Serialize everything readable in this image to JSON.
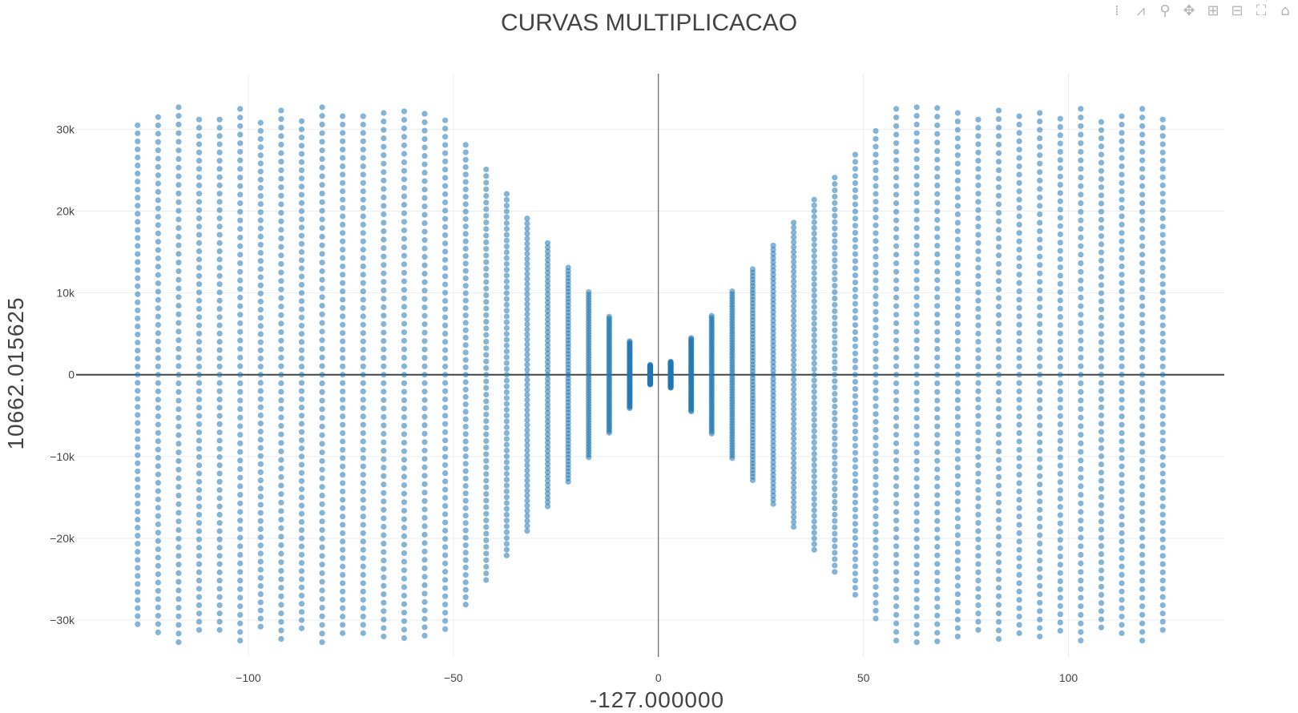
{
  "modebar": {
    "icons": [
      "show-closest-data-icon",
      "compare-data-icon",
      "zoom-icon",
      "pan-icon",
      "zoom-in-icon",
      "zoom-out-icon",
      "autoscale-icon",
      "reset-axes-icon"
    ],
    "color": "#b6b6b6"
  },
  "chart_data": {
    "type": "scatter",
    "title": "CURVAS MULTIPLICACAO",
    "xlabel": "-127.000000",
    "ylabel": "10662.015625",
    "xlim": [
      -142,
      138
    ],
    "ylim": [
      -34500,
      36800
    ],
    "xticks": [
      -100,
      -50,
      0,
      50,
      100
    ],
    "xtick_labels": [
      "−100",
      "−50",
      "0",
      "50",
      "100"
    ],
    "yticks": [
      -30000,
      -20000,
      -10000,
      0,
      10000,
      20000,
      30000
    ],
    "ytick_labels": [
      "−30k",
      "−20k",
      "−10k",
      "0",
      "10k",
      "20k",
      "30k"
    ],
    "grid": true,
    "zero_lines": true,
    "marker_color": "#1f77b4",
    "marker_opacity": 0.55,
    "series": [
      {
        "columns": [
          {
            "x": -127,
            "half_range": 30500,
            "count": 63
          },
          {
            "x": -122,
            "half_range": 31500,
            "count": 63
          },
          {
            "x": -117,
            "half_range": 32700,
            "count": 63
          },
          {
            "x": -112,
            "half_range": 31200,
            "count": 63
          },
          {
            "x": -107,
            "half_range": 31200,
            "count": 63
          },
          {
            "x": -102,
            "half_range": 32500,
            "count": 63
          },
          {
            "x": -97,
            "half_range": 30800,
            "count": 63
          },
          {
            "x": -92,
            "half_range": 32300,
            "count": 63
          },
          {
            "x": -87,
            "half_range": 31000,
            "count": 63
          },
          {
            "x": -82,
            "half_range": 32700,
            "count": 63
          },
          {
            "x": -77,
            "half_range": 31600,
            "count": 63
          },
          {
            "x": -72,
            "half_range": 31600,
            "count": 63
          },
          {
            "x": -67,
            "half_range": 32000,
            "count": 63
          },
          {
            "x": -62,
            "half_range": 32200,
            "count": 63
          },
          {
            "x": -57,
            "half_range": 31900,
            "count": 63
          },
          {
            "x": -52,
            "half_range": 31100,
            "count": 63
          },
          {
            "x": -47,
            "half_range": 28100,
            "count": 63
          },
          {
            "x": -42,
            "half_range": 25100,
            "count": 63
          },
          {
            "x": -37,
            "half_range": 22100,
            "count": 63
          },
          {
            "x": -32,
            "half_range": 19100,
            "count": 63
          },
          {
            "x": -27,
            "half_range": 16100,
            "count": 63
          },
          {
            "x": -22,
            "half_range": 13100,
            "count": 63
          },
          {
            "x": -17,
            "half_range": 10100,
            "count": 63
          },
          {
            "x": -12,
            "half_range": 7100,
            "count": 63
          },
          {
            "x": -7,
            "half_range": 4100,
            "count": 63
          },
          {
            "x": -2,
            "half_range": 1200,
            "count": 63
          },
          {
            "x": 3,
            "half_range": 1600,
            "count": 63
          },
          {
            "x": 8,
            "half_range": 4500,
            "count": 63
          },
          {
            "x": 13,
            "half_range": 7200,
            "count": 63
          },
          {
            "x": 18,
            "half_range": 10200,
            "count": 63
          },
          {
            "x": 23,
            "half_range": 12900,
            "count": 63
          },
          {
            "x": 28,
            "half_range": 15800,
            "count": 63
          },
          {
            "x": 33,
            "half_range": 18600,
            "count": 63
          },
          {
            "x": 38,
            "half_range": 21400,
            "count": 63
          },
          {
            "x": 43,
            "half_range": 24100,
            "count": 63
          },
          {
            "x": 48,
            "half_range": 26900,
            "count": 63
          },
          {
            "x": 53,
            "half_range": 29800,
            "count": 63
          },
          {
            "x": 58,
            "half_range": 32500,
            "count": 63
          },
          {
            "x": 63,
            "half_range": 32700,
            "count": 63
          },
          {
            "x": 68,
            "half_range": 32600,
            "count": 63
          },
          {
            "x": 73,
            "half_range": 32000,
            "count": 63
          },
          {
            "x": 78,
            "half_range": 31200,
            "count": 63
          },
          {
            "x": 83,
            "half_range": 32300,
            "count": 63
          },
          {
            "x": 88,
            "half_range": 31600,
            "count": 63
          },
          {
            "x": 93,
            "half_range": 32000,
            "count": 63
          },
          {
            "x": 98,
            "half_range": 31300,
            "count": 63
          },
          {
            "x": 103,
            "half_range": 32500,
            "count": 63
          },
          {
            "x": 108,
            "half_range": 30900,
            "count": 63
          },
          {
            "x": 113,
            "half_range": 31600,
            "count": 63
          },
          {
            "x": 118,
            "half_range": 32500,
            "count": 63
          },
          {
            "x": 123,
            "half_range": 31200,
            "count": 63
          }
        ]
      }
    ]
  }
}
